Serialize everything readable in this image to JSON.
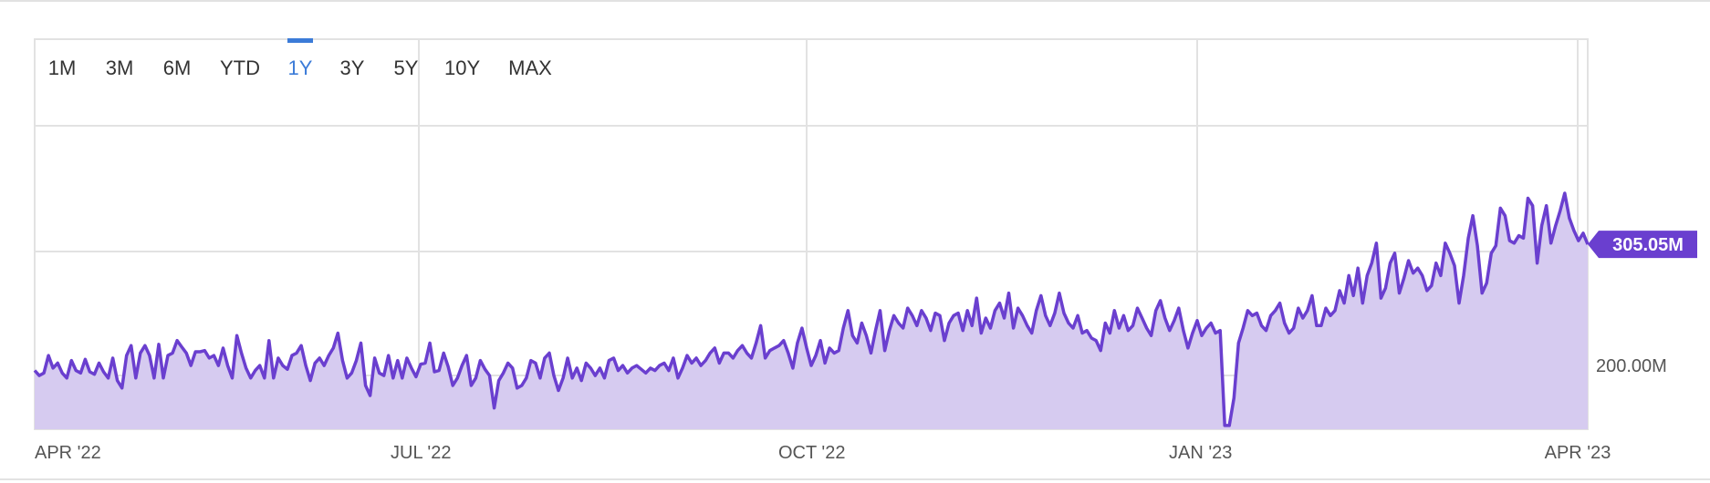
{
  "range_selector": {
    "items": [
      "1M",
      "3M",
      "6M",
      "YTD",
      "1Y",
      "3Y",
      "5Y",
      "10Y",
      "MAX"
    ],
    "active": "1Y"
  },
  "colors": {
    "line": "#6a3fcf",
    "fill": "#d6cbf0",
    "grid": "#e2e2e2",
    "active_tab": "#3b7bd8",
    "badge": "#6a3fcf"
  },
  "chart_data": {
    "type": "area",
    "title": "",
    "xlabel": "",
    "ylabel": "",
    "x_ticks": [
      "APR '22",
      "JUL '22",
      "OCT '22",
      "JAN '23",
      "APR '23"
    ],
    "y_ticks": [
      {
        "value": 200,
        "label": "200.00M"
      }
    ],
    "ylim": [
      157,
      400
    ],
    "y_unit": "M",
    "x_start": "2022-04-01",
    "x_end": "2023-04-03",
    "last_value_label": "305.05M",
    "legend": "none",
    "grid": true,
    "series": [
      {
        "values": [
          204.1,
          200,
          202,
          216,
          206,
          210,
          202,
          198,
          212,
          204,
          202,
          213,
          203,
          201,
          210,
          203,
          198,
          214,
          196,
          190,
          216,
          224,
          198,
          218,
          224,
          216,
          198,
          225,
          198,
          216,
          218,
          228,
          223,
          218,
          208,
          219,
          219,
          220,
          214,
          216,
          208,
          222,
          208,
          198,
          232,
          218,
          206,
          198,
          204,
          208,
          198,
          228,
          198,
          214,
          208,
          205,
          216,
          218,
          224,
          208,
          196,
          210,
          214,
          208,
          216,
          222,
          234,
          212,
          198,
          202,
          212,
          226,
          192,
          184,
          214,
          202,
          200,
          216,
          198,
          212,
          198,
          214,
          206,
          199,
          209,
          210,
          226,
          203,
          204,
          218,
          207,
          192,
          198,
          208,
          216,
          192,
          198,
          212,
          205,
          200,
          174,
          196,
          202,
          210,
          206,
          190,
          192,
          198,
          212,
          210,
          198,
          214,
          218,
          200,
          188,
          198,
          214,
          198,
          206,
          196,
          210,
          206,
          200,
          206,
          198,
          212,
          214,
          204,
          208,
          202,
          206,
          208,
          205,
          202,
          206,
          204,
          208,
          210,
          204,
          214,
          198,
          206,
          216,
          210,
          214,
          208,
          212,
          218,
          222,
          210,
          218,
          218,
          214,
          220,
          224,
          218,
          214,
          226,
          240,
          214,
          220,
          222,
          224,
          228,
          218,
          206,
          226,
          238,
          222,
          208,
          216,
          228,
          210,
          222,
          218,
          220,
          238,
          252,
          232,
          226,
          242,
          232,
          218,
          236,
          252,
          220,
          236,
          248,
          242,
          238,
          254,
          248,
          240,
          252,
          246,
          236,
          250,
          248,
          228,
          242,
          248,
          250,
          236,
          252,
          240,
          262,
          234,
          246,
          238,
          252,
          258,
          246,
          266,
          238,
          254,
          248,
          240,
          234,
          252,
          264,
          248,
          240,
          250,
          266,
          250,
          242,
          238,
          248,
          234,
          236,
          230,
          228,
          220,
          242,
          234,
          252,
          238,
          248,
          236,
          240,
          254,
          246,
          238,
          232,
          252,
          260,
          246,
          236,
          244,
          254,
          236,
          222,
          234,
          244,
          232,
          238,
          242,
          234,
          236,
          160,
          160,
          182,
          226,
          238,
          252,
          248,
          250,
          240,
          236,
          248,
          252,
          258,
          242,
          234,
          238,
          254,
          246,
          252,
          264,
          240,
          240,
          254,
          248,
          252,
          268,
          258,
          280,
          264,
          286,
          258,
          280,
          290,
          306,
          262,
          270,
          290,
          298,
          266,
          278,
          292,
          282,
          286,
          280,
          268,
          272,
          290,
          280,
          306,
          298,
          288,
          258,
          280,
          310,
          328,
          304,
          266,
          274,
          298,
          304,
          334,
          328,
          308,
          306,
          312,
          310,
          342,
          336,
          290,
          320,
          336,
          306,
          320,
          332,
          346,
          326,
          316,
          308,
          314,
          305.05
        ]
      }
    ]
  }
}
